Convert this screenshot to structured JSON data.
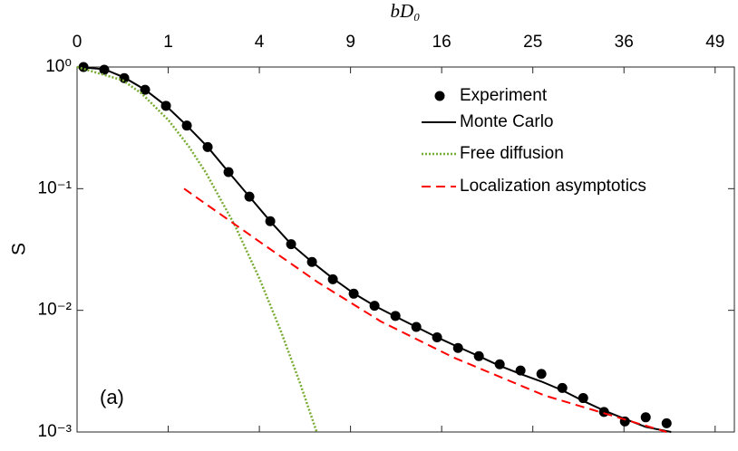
{
  "chart_data": {
    "type": "line",
    "x_label": "bD₀",
    "y_label": "S",
    "annotation": "(a)",
    "xscale": "sqrt",
    "yscale": "log",
    "legend": "upper right",
    "xlim": [
      0,
      52
    ],
    "ylim": [
      0.001,
      1
    ],
    "xticks": [
      0,
      1,
      4,
      9,
      16,
      25,
      36,
      49
    ],
    "yticks": [
      {
        "value": 0.001,
        "label": "10⁻³"
      },
      {
        "value": 0.01,
        "label": "10⁻²"
      },
      {
        "value": 0.1,
        "label": "10⁻¹"
      },
      {
        "value": 1,
        "label": "10⁰"
      }
    ],
    "series": [
      {
        "name": "Experiment",
        "color": "#000000",
        "style": "markers",
        "x": [
          0.005,
          0.089,
          0.268,
          0.557,
          0.951,
          1.45,
          2.053,
          2.761,
          3.574,
          4.492,
          5.514,
          6.642,
          7.873,
          9.21,
          10.65,
          12.2,
          13.85,
          15.6,
          17.47,
          19.43,
          21.5,
          23.67,
          25.95,
          28.34,
          30.83,
          33.42,
          36.12,
          38.92,
          41.83
        ],
        "values": [
          1.0,
          0.95,
          0.81,
          0.65,
          0.48,
          0.33,
          0.22,
          0.137,
          0.086,
          0.054,
          0.035,
          0.025,
          0.018,
          0.0137,
          0.0109,
          0.009,
          0.0073,
          0.006,
          0.0049,
          0.0042,
          0.0036,
          0.0032,
          0.003,
          0.0023,
          0.0019,
          0.00146,
          0.00122,
          0.00132,
          0.00118
        ]
      },
      {
        "name": "Monte Carlo",
        "color": "#000000",
        "style": "solid",
        "x": [
          0,
          0.089,
          0.268,
          0.557,
          0.951,
          1.45,
          2.053,
          2.761,
          3.574,
          4.492,
          5.514,
          6.642,
          7.873,
          9.21,
          10.65,
          12.2,
          13.85,
          15.6,
          17.47,
          19.43,
          21.5,
          23.67,
          25.95,
          28.34,
          30.83,
          33.42,
          36.12,
          38.92,
          42.48
        ],
        "values": [
          1.0,
          0.96,
          0.82,
          0.65,
          0.48,
          0.33,
          0.22,
          0.137,
          0.086,
          0.054,
          0.035,
          0.025,
          0.0183,
          0.0138,
          0.0109,
          0.0089,
          0.0073,
          0.006,
          0.005,
          0.0042,
          0.0035,
          0.003,
          0.0026,
          0.0022,
          0.0018,
          0.0015,
          0.00128,
          0.0011,
          0.001
        ]
      },
      {
        "name": "Free diffusion",
        "color": "#77ac30",
        "style": "dotted",
        "x": [
          0,
          0.25,
          0.5,
          1,
          1.5,
          2,
          3,
          4,
          5,
          6,
          6.9
        ],
        "values": [
          1,
          0.779,
          0.607,
          0.368,
          0.223,
          0.135,
          0.0498,
          0.0183,
          0.00674,
          0.00248,
          0.00101
        ]
      },
      {
        "name": "Localization asymptotics",
        "color": "#ff0000",
        "style": "dashed",
        "x": [
          1.378,
          4.161,
          6.953,
          11.11,
          17.05,
          26.26,
          41.83
        ],
        "values": [
          0.1,
          0.035,
          0.0171,
          0.0081,
          0.0041,
          0.002,
          0.001
        ]
      }
    ]
  }
}
